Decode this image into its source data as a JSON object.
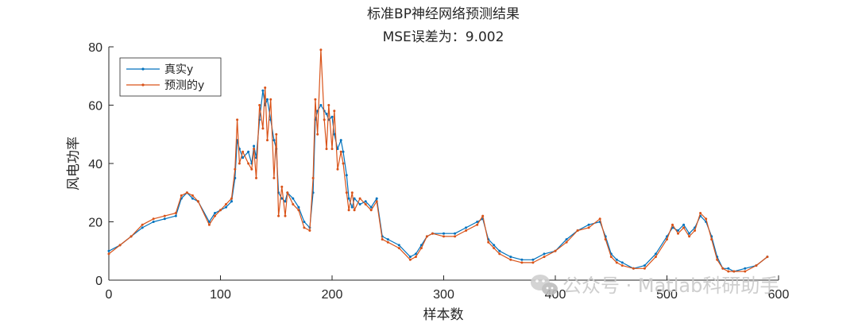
{
  "chart_data": {
    "type": "line",
    "title": "标准BP神经网络预测结果",
    "subtitle": "MSE误差为：9.002",
    "xlabel": "样本数",
    "ylabel": "风电功率",
    "xlim": [
      0,
      600
    ],
    "ylim": [
      0,
      80
    ],
    "xticks": [
      0,
      100,
      200,
      300,
      400,
      500,
      600
    ],
    "yticks": [
      0,
      20,
      40,
      60,
      80
    ],
    "grid": false,
    "legend_position": "top-left",
    "series": [
      {
        "name": "真实y",
        "color": "#0072BD",
        "marker": "dot",
        "x": [
          0,
          10,
          20,
          30,
          40,
          50,
          60,
          65,
          70,
          75,
          80,
          90,
          95,
          100,
          105,
          110,
          113,
          115,
          117,
          120,
          125,
          128,
          130,
          132,
          135,
          138,
          140,
          142,
          145,
          148,
          150,
          152,
          155,
          158,
          160,
          165,
          170,
          175,
          180,
          183,
          185,
          187,
          190,
          193,
          195,
          197,
          200,
          202,
          205,
          208,
          210,
          213,
          215,
          218,
          220,
          225,
          230,
          235,
          240,
          245,
          250,
          260,
          270,
          275,
          280,
          285,
          290,
          300,
          310,
          320,
          330,
          335,
          340,
          345,
          350,
          360,
          370,
          380,
          390,
          400,
          410,
          420,
          430,
          440,
          445,
          450,
          455,
          460,
          470,
          480,
          490,
          500,
          505,
          510,
          515,
          520,
          525,
          530,
          535,
          540,
          545,
          550,
          555,
          560,
          570,
          580,
          590
        ],
        "y": [
          10,
          12,
          15,
          18,
          20,
          21,
          22,
          28,
          30,
          28,
          27,
          20,
          23,
          24,
          25,
          27,
          35,
          48,
          45,
          42,
          44,
          40,
          46,
          42,
          55,
          65,
          60,
          62,
          55,
          48,
          45,
          30,
          28,
          27,
          30,
          28,
          25,
          20,
          18,
          30,
          55,
          58,
          60,
          58,
          57,
          55,
          56,
          50,
          45,
          48,
          44,
          36,
          28,
          25,
          28,
          26,
          27,
          25,
          28,
          15,
          14,
          12,
          8,
          9,
          12,
          15,
          16,
          16,
          16,
          18,
          20,
          21,
          14,
          12,
          10,
          8,
          7,
          7,
          9,
          10,
          14,
          17,
          19,
          20,
          15,
          9,
          7,
          6,
          4,
          5,
          9,
          15,
          18,
          17,
          19,
          16,
          18,
          22,
          20,
          15,
          8,
          4,
          4,
          3,
          4,
          5,
          8
        ]
      },
      {
        "name": "预测的y",
        "color": "#D95319",
        "marker": "dot",
        "x": [
          0,
          10,
          20,
          30,
          40,
          50,
          60,
          65,
          70,
          75,
          80,
          90,
          95,
          100,
          105,
          110,
          113,
          115,
          117,
          120,
          125,
          128,
          130,
          132,
          135,
          138,
          140,
          142,
          145,
          148,
          150,
          152,
          155,
          158,
          160,
          165,
          170,
          175,
          180,
          183,
          185,
          187,
          190,
          193,
          195,
          197,
          200,
          202,
          205,
          208,
          210,
          213,
          215,
          218,
          220,
          225,
          230,
          235,
          240,
          245,
          250,
          260,
          270,
          275,
          280,
          285,
          290,
          300,
          310,
          320,
          330,
          335,
          340,
          345,
          350,
          360,
          370,
          380,
          390,
          400,
          410,
          420,
          430,
          440,
          445,
          450,
          455,
          460,
          470,
          480,
          490,
          500,
          505,
          510,
          515,
          520,
          525,
          530,
          535,
          540,
          545,
          550,
          555,
          560,
          570,
          580,
          590
        ],
        "y": [
          9,
          12,
          15,
          19,
          21,
          22,
          23,
          29,
          30,
          29,
          27,
          19,
          22,
          24,
          26,
          28,
          38,
          55,
          40,
          44,
          40,
          38,
          45,
          35,
          60,
          52,
          66,
          48,
          62,
          35,
          50,
          22,
          32,
          22,
          30,
          26,
          24,
          18,
          17,
          35,
          62,
          50,
          79,
          55,
          45,
          60,
          45,
          58,
          38,
          44,
          40,
          30,
          24,
          30,
          24,
          28,
          26,
          24,
          27,
          14,
          13,
          11,
          7,
          8,
          11,
          15,
          16,
          15,
          15,
          17,
          19,
          22,
          13,
          11,
          9,
          7,
          6,
          6,
          8,
          10,
          13,
          17,
          18,
          21,
          14,
          8,
          6,
          5,
          4,
          4,
          8,
          14,
          19,
          16,
          18,
          15,
          17,
          23,
          21,
          14,
          7,
          4,
          3,
          3,
          3,
          5,
          8
        ]
      }
    ]
  },
  "watermark": {
    "text": "公众号 · Matlab科研助手",
    "icon": "wechat-icon"
  }
}
